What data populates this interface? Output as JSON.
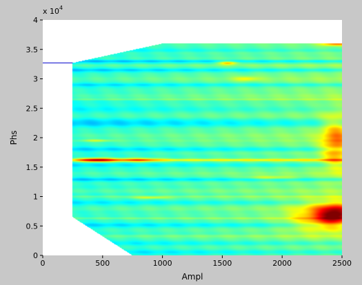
{
  "chart_data": {
    "type": "heatmap",
    "title": "",
    "xlabel": "Ampl",
    "ylabel": "Phs",
    "xlim": [
      0,
      2500
    ],
    "ylim": [
      0,
      4
    ],
    "y_exponent_label": "x 10",
    "y_exponent_power": "4",
    "x_ticks": [
      "0",
      "500",
      "1000",
      "1500",
      "2000",
      "2500"
    ],
    "y_ticks": [
      "0",
      "0.5",
      "1",
      "1.5",
      "2",
      "2.5",
      "3",
      "3.5",
      "4"
    ],
    "grid": false,
    "colormap": "jet",
    "background_color": "#c8c8c8",
    "axes_color": "#ffffff",
    "filled_region": [
      [
        250,
        6500
      ],
      [
        750,
        0
      ],
      [
        2500,
        0
      ],
      [
        2500,
        36000
      ],
      [
        1000,
        36000
      ],
      [
        250,
        32700
      ]
    ],
    "baseline_line": {
      "x": [
        0,
        250
      ],
      "y": [
        32700,
        32700
      ],
      "color": "#0000cc"
    },
    "bands": [
      {
        "y": 34800,
        "amp": -0.5,
        "w": 300
      },
      {
        "y": 33000,
        "amp": -0.9,
        "w": 250
      },
      {
        "y": 32300,
        "amp": 0.3,
        "w": 180
      },
      {
        "y": 31500,
        "amp": -0.7,
        "w": 300
      },
      {
        "y": 30000,
        "amp": 0.4,
        "w": 400
      },
      {
        "y": 29000,
        "amp": -0.6,
        "w": 300
      },
      {
        "y": 27200,
        "amp": 0.3,
        "w": 400
      },
      {
        "y": 26500,
        "amp": 0.5,
        "w": 150
      },
      {
        "y": 25000,
        "amp": -0.3,
        "w": 700
      },
      {
        "y": 23500,
        "amp": 0.3,
        "w": 400
      },
      {
        "y": 22600,
        "amp": -0.8,
        "w": 700
      },
      {
        "y": 20500,
        "amp": 0.3,
        "w": 500
      },
      {
        "y": 19500,
        "amp": 0.4,
        "w": 300
      },
      {
        "y": 18000,
        "amp": -0.6,
        "w": 400
      },
      {
        "y": 16200,
        "amp": 1.3,
        "w": 200
      },
      {
        "y": 15300,
        "amp": -0.5,
        "w": 400
      },
      {
        "y": 14000,
        "amp": 0.3,
        "w": 300
      },
      {
        "y": 12900,
        "amp": -0.7,
        "w": 300
      },
      {
        "y": 11000,
        "amp": 0.2,
        "w": 500
      },
      {
        "y": 10000,
        "amp": 0.5,
        "w": 200
      },
      {
        "y": 9000,
        "amp": -0.4,
        "w": 400
      },
      {
        "y": 7800,
        "amp": 0.3,
        "w": 400
      },
      {
        "y": 6300,
        "amp": 0.6,
        "w": 200
      },
      {
        "y": 5200,
        "amp": -0.6,
        "w": 400
      },
      {
        "y": 3300,
        "amp": 0.4,
        "w": 250
      },
      {
        "y": 2000,
        "amp": -0.5,
        "w": 400
      },
      {
        "y": 500,
        "amp": -0.7,
        "w": 400
      }
    ],
    "hotspots": [
      {
        "x": 450,
        "y": 16200,
        "amp": 1.6,
        "wx": 160,
        "wy": 350
      },
      {
        "x": 800,
        "y": 16200,
        "amp": 0.9,
        "wx": 180,
        "wy": 350
      },
      {
        "x": 2450,
        "y": 7000,
        "amp": 1.6,
        "wx": 150,
        "wy": 1800
      },
      {
        "x": 2300,
        "y": 6500,
        "amp": 0.8,
        "wx": 250,
        "wy": 2500
      },
      {
        "x": 2450,
        "y": 19000,
        "amp": 1.0,
        "wx": 120,
        "wy": 4500
      },
      {
        "x": 1550,
        "y": 32700,
        "amp": 1.0,
        "wx": 80,
        "wy": 300
      },
      {
        "x": 1700,
        "y": 30000,
        "amp": 0.5,
        "wx": 100,
        "wy": 400
      },
      {
        "x": 2450,
        "y": 35900,
        "amp": 1.0,
        "wx": 120,
        "wy": 300
      },
      {
        "x": 1900,
        "y": 13200,
        "amp": 0.5,
        "wx": 200,
        "wy": 300
      },
      {
        "x": 900,
        "y": 9800,
        "amp": 0.5,
        "wx": 150,
        "wy": 200
      },
      {
        "x": 450,
        "y": 19500,
        "amp": 0.5,
        "wx": 120,
        "wy": 200
      }
    ]
  }
}
